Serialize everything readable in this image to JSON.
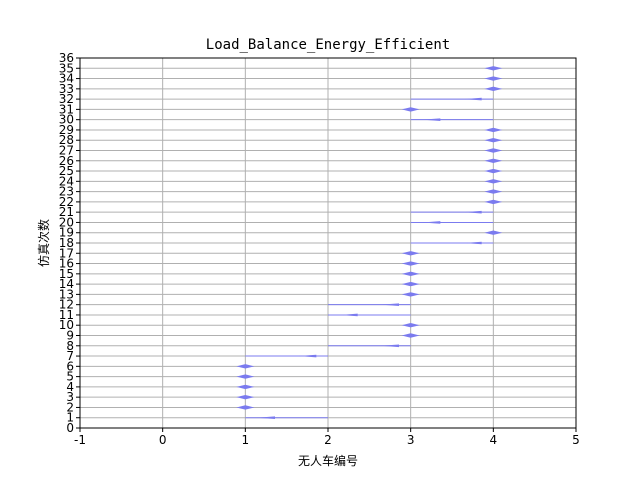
{
  "chart_data": {
    "type": "scatter",
    "title": "Load_Balance_Energy_Efficient",
    "xlabel": "无人车编号",
    "ylabel": "仿真次数",
    "xlim": [
      -1,
      5
    ],
    "ylim": [
      0,
      36
    ],
    "xticks": [
      -1,
      0,
      1,
      2,
      3,
      4,
      5
    ],
    "yticks": [
      0,
      1,
      2,
      3,
      4,
      5,
      6,
      7,
      8,
      9,
      10,
      11,
      12,
      13,
      14,
      15,
      16,
      17,
      18,
      19,
      20,
      21,
      22,
      23,
      24,
      25,
      26,
      27,
      28,
      29,
      30,
      31,
      32,
      33,
      34,
      35,
      36
    ],
    "grid": true,
    "marker": "diamond",
    "colors": {
      "marker": "#7b7bef",
      "line": "#7b7bef",
      "grid": "#b0b0b0"
    },
    "series": [
      {
        "points": [
          {
            "run": 1,
            "x": 1.25,
            "from": 1,
            "to": 2
          },
          {
            "run": 2,
            "x": 1.0
          },
          {
            "run": 3,
            "x": 1.0
          },
          {
            "run": 4,
            "x": 1.0
          },
          {
            "run": 5,
            "x": 1.0
          },
          {
            "run": 6,
            "x": 1.0
          },
          {
            "run": 7,
            "x": 1.75,
            "from": 1,
            "to": 2
          },
          {
            "run": 8,
            "x": 2.75,
            "from": 2,
            "to": 3
          },
          {
            "run": 9,
            "x": 3.0
          },
          {
            "run": 10,
            "x": 3.0
          },
          {
            "run": 11,
            "x": 2.25,
            "from": 2,
            "to": 3
          },
          {
            "run": 12,
            "x": 2.75,
            "from": 2,
            "to": 3
          },
          {
            "run": 13,
            "x": 3.0
          },
          {
            "run": 14,
            "x": 3.0
          },
          {
            "run": 15,
            "x": 3.0
          },
          {
            "run": 16,
            "x": 3.0
          },
          {
            "run": 17,
            "x": 3.0
          },
          {
            "run": 18,
            "x": 3.75,
            "from": 3,
            "to": 4
          },
          {
            "run": 19,
            "x": 4.0
          },
          {
            "run": 20,
            "x": 3.25,
            "from": 3,
            "to": 4
          },
          {
            "run": 21,
            "x": 3.75,
            "from": 3,
            "to": 4
          },
          {
            "run": 22,
            "x": 4.0
          },
          {
            "run": 23,
            "x": 4.0
          },
          {
            "run": 24,
            "x": 4.0
          },
          {
            "run": 25,
            "x": 4.0
          },
          {
            "run": 26,
            "x": 4.0
          },
          {
            "run": 27,
            "x": 4.0
          },
          {
            "run": 28,
            "x": 4.0
          },
          {
            "run": 29,
            "x": 4.0
          },
          {
            "run": 30,
            "x": 3.25,
            "from": 3,
            "to": 4
          },
          {
            "run": 31,
            "x": 3.0
          },
          {
            "run": 32,
            "x": 3.75,
            "from": 3,
            "to": 4
          },
          {
            "run": 33,
            "x": 4.0
          },
          {
            "run": 34,
            "x": 4.0
          },
          {
            "run": 35,
            "x": 4.0
          }
        ]
      }
    ]
  }
}
